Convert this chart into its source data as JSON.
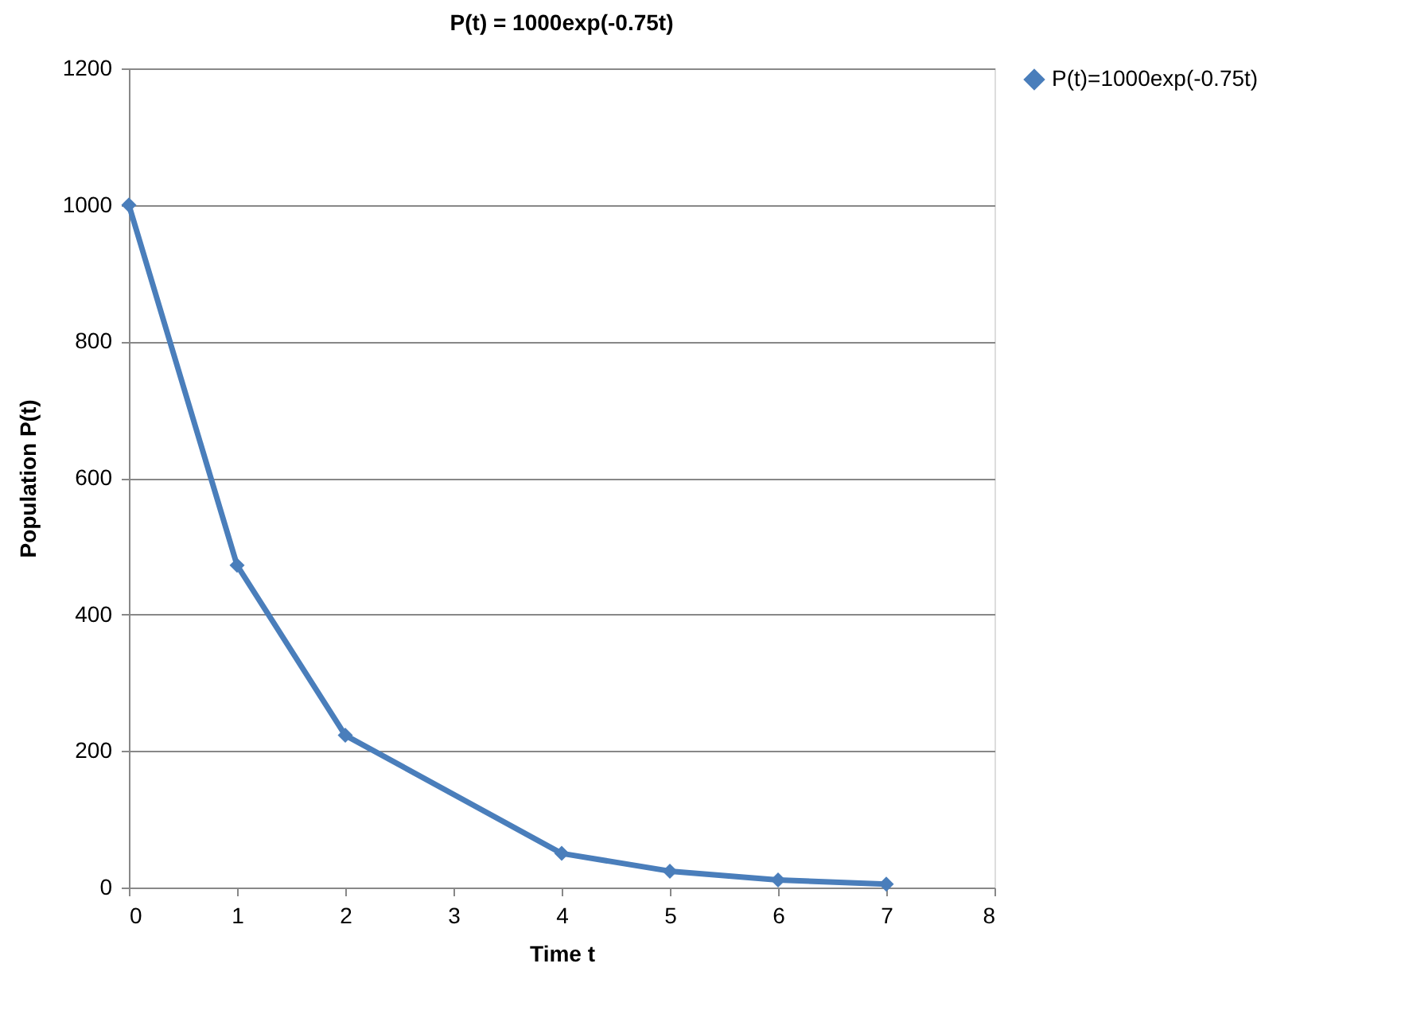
{
  "chart_data": {
    "type": "line",
    "title": "P(t) = 1000exp(-0.75t)",
    "xlabel": "Time t",
    "ylabel": "Population P(t)",
    "x": [
      0,
      1,
      2,
      4,
      5,
      6,
      7
    ],
    "series": [
      {
        "name": "P(t)=1000exp(-0.75t)",
        "color": "#4a7ebb",
        "values": [
          1000,
          472,
          223,
          50,
          24,
          11,
          5
        ]
      }
    ],
    "xlim": [
      0,
      8
    ],
    "xticks": [
      0,
      1,
      2,
      3,
      4,
      5,
      6,
      7,
      8
    ],
    "ylim": [
      0,
      1200
    ],
    "yticks": [
      0,
      200,
      400,
      600,
      800,
      1000,
      1200
    ],
    "grid": "y",
    "legend": "right",
    "marker": "diamond",
    "line_style": "solid"
  }
}
